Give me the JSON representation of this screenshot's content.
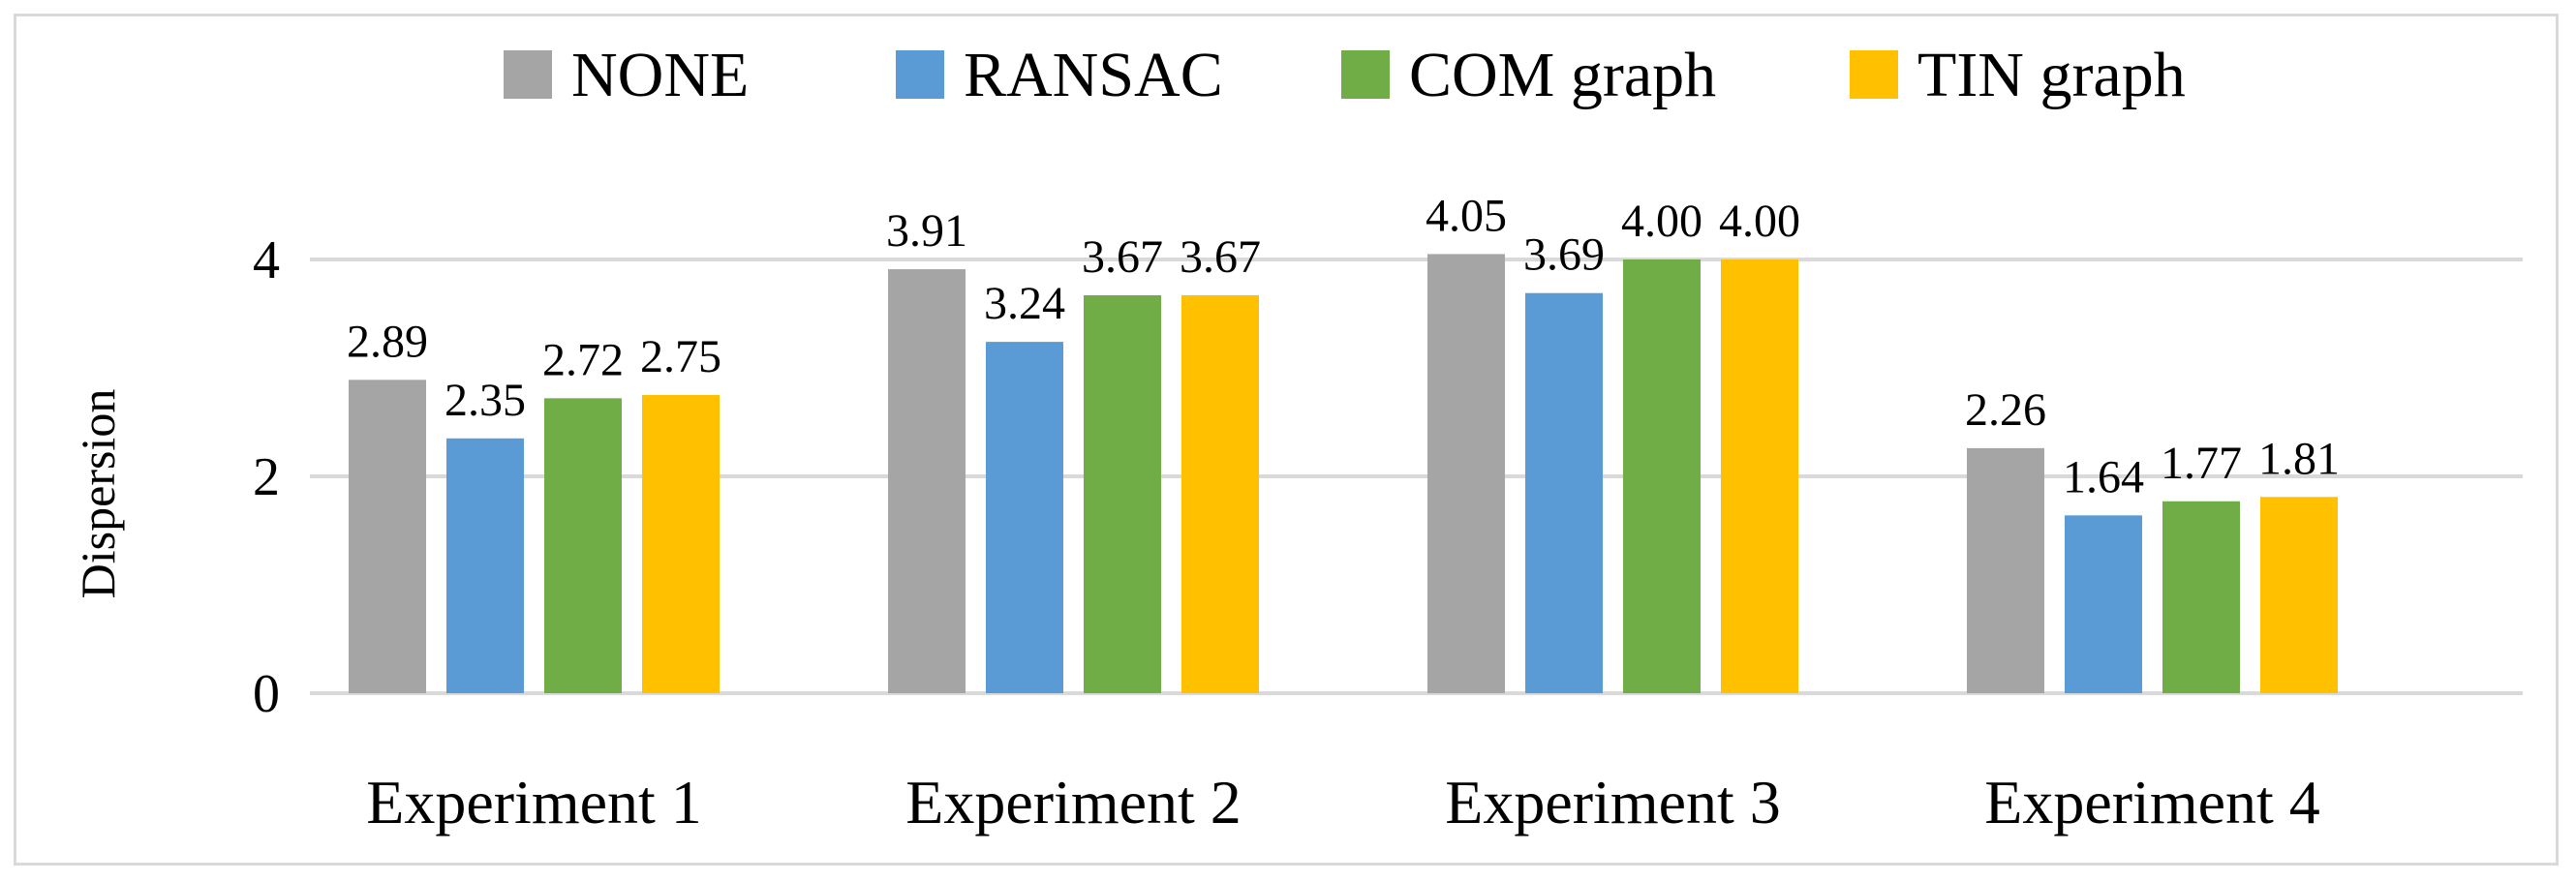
{
  "chart_data": {
    "type": "bar",
    "title": "",
    "xlabel": "",
    "ylabel": "Dispersion",
    "ylim": [
      0,
      4
    ],
    "yticks": [
      0,
      2,
      4
    ],
    "grid": true,
    "legend_position": "top",
    "categories": [
      "Experiment 1",
      "Experiment 2",
      "Experiment 3",
      "Experiment 4"
    ],
    "series": [
      {
        "name": "NONE",
        "color": "#a5a5a5",
        "values": [
          2.89,
          3.91,
          4.05,
          2.26
        ],
        "labels": [
          "2.89",
          "3.91",
          "4.05",
          "2.26"
        ]
      },
      {
        "name": "RANSAC",
        "color": "#5b9bd5",
        "values": [
          2.35,
          3.24,
          3.69,
          1.64
        ],
        "labels": [
          "2.35",
          "3.24",
          "3.69",
          "1.64"
        ]
      },
      {
        "name": "COM graph",
        "color": "#70ad47",
        "values": [
          2.72,
          3.67,
          4.0,
          1.77
        ],
        "labels": [
          "2.72",
          "3.67",
          "4.00",
          "1.77"
        ]
      },
      {
        "name": "TIN graph",
        "color": "#ffc000",
        "values": [
          2.75,
          3.67,
          4.0,
          1.81
        ],
        "labels": [
          "2.75",
          "3.67",
          "4.00",
          "1.81"
        ]
      }
    ]
  }
}
